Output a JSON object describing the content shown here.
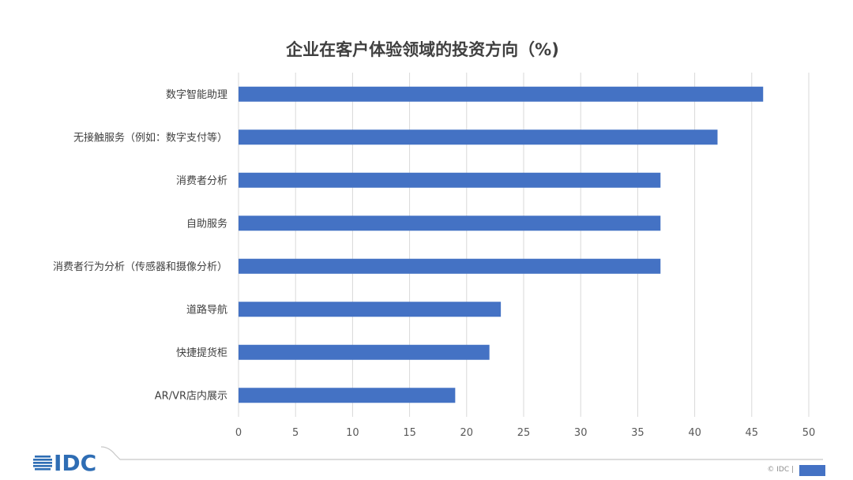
{
  "chart_data": {
    "type": "bar",
    "orientation": "horizontal",
    "title": "企业在客户体验领域的投资方向（%)",
    "categories": [
      "数字智能助理",
      "无接触服务（例如：数字支付等）",
      "消费者分析",
      "自助服务",
      "消费者行为分析（传感器和摄像分析）",
      "道路导航",
      "快捷提货柜",
      "AR/VR店内展示"
    ],
    "values": [
      46,
      42,
      37,
      37,
      37,
      23,
      22,
      19
    ],
    "xlim": [
      0,
      50
    ],
    "xticks": [
      "0",
      "5",
      "10",
      "15",
      "20",
      "25",
      "30",
      "35",
      "40",
      "45",
      "50"
    ],
    "grid": true,
    "bar_color": "#4472c4"
  },
  "branding": {
    "logo_text": "IDC",
    "logo_color": "#2e6db4",
    "footer_text": "© IDC |"
  }
}
